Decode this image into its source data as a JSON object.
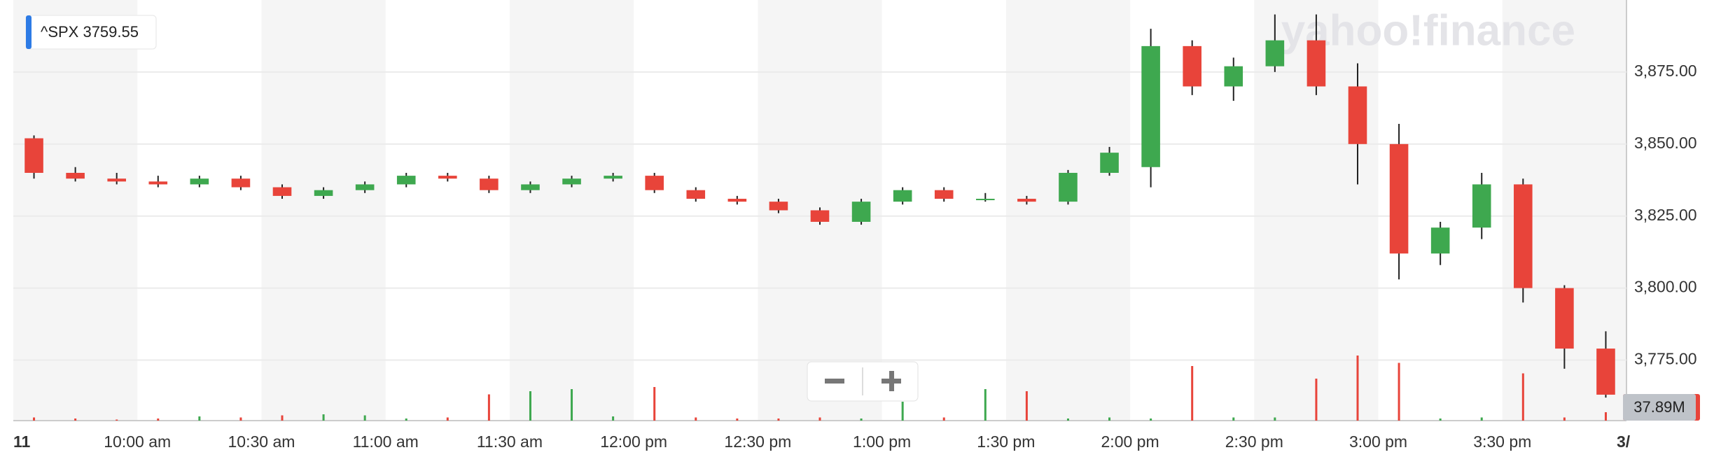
{
  "chart_data": {
    "type": "candlestick",
    "symbol_label": "^SPX 3759.55",
    "watermark": "yahoo!finance",
    "volume_label": "37.89M",
    "colors": {
      "up": "#3ea84f",
      "down": "#e8443a"
    },
    "x": [
      0,
      10,
      20,
      30,
      40,
      50,
      60,
      70,
      80,
      90,
      100,
      110,
      120,
      130,
      140,
      150,
      160,
      170,
      180,
      190,
      200,
      210,
      220,
      230,
      240,
      250,
      260,
      270,
      280,
      290,
      300,
      310,
      320,
      330,
      340,
      350,
      360,
      370,
      380
    ],
    "open": [
      3852,
      3840,
      3838,
      3837,
      3836,
      3838,
      3835,
      3832,
      3834,
      3836,
      3839,
      3838,
      3834,
      3836,
      3838,
      3839,
      3834,
      3831,
      3830,
      3827,
      3823,
      3830,
      3834,
      3831,
      3831,
      3830,
      3840,
      3842,
      3884,
      3870,
      3877,
      3886,
      3870,
      3850,
      3812,
      3821,
      3836,
      3800,
      3779
    ],
    "high": [
      3853,
      3842,
      3840,
      3839,
      3839,
      3839,
      3836,
      3835,
      3837,
      3840,
      3840,
      3839,
      3837,
      3839,
      3840,
      3840,
      3835,
      3832,
      3831,
      3828,
      3831,
      3835,
      3835,
      3833,
      3832,
      3841,
      3849,
      3890,
      3886,
      3880,
      3895,
      3895,
      3878,
      3857,
      3823,
      3840,
      3838,
      3801,
      3785
    ],
    "low": [
      3838,
      3837,
      3836,
      3835,
      3835,
      3834,
      3831,
      3831,
      3833,
      3835,
      3837,
      3833,
      3833,
      3835,
      3837,
      3833,
      3830,
      3829,
      3826,
      3822,
      3822,
      3829,
      3830,
      3830,
      3829,
      3829,
      3839,
      3835,
      3867,
      3865,
      3875,
      3867,
      3836,
      3803,
      3808,
      3817,
      3795,
      3772,
      3762
    ],
    "close": [
      3840,
      3838,
      3837,
      3836,
      3838,
      3835,
      3832,
      3834,
      3836,
      3839,
      3838,
      3834,
      3836,
      3838,
      3839,
      3834,
      3831,
      3830,
      3827,
      3823,
      3830,
      3834,
      3831,
      3831,
      3830,
      3840,
      3847,
      3884,
      3870,
      3877,
      3886,
      3870,
      3850,
      3812,
      3821,
      3836,
      3800,
      3779,
      3763
    ],
    "volume": [
      3,
      2,
      1,
      2,
      4,
      3,
      5,
      6,
      5,
      2,
      3,
      25,
      28,
      30,
      4,
      32,
      3,
      2,
      2,
      3,
      2,
      18,
      3,
      30,
      28,
      2,
      3,
      2,
      52,
      3,
      3,
      40,
      62,
      55,
      2,
      3,
      45,
      3,
      8
    ],
    "volume_lim": [
      0,
      100
    ],
    "xlim": [
      0,
      390
    ],
    "xticks": [
      {
        "value": 0,
        "label": "11"
      },
      {
        "value": 30,
        "label": "10:00 am"
      },
      {
        "value": 60,
        "label": "10:30 am"
      },
      {
        "value": 90,
        "label": "11:00 am"
      },
      {
        "value": 120,
        "label": "11:30 am"
      },
      {
        "value": 150,
        "label": "12:00 pm"
      },
      {
        "value": 180,
        "label": "12:30 pm"
      },
      {
        "value": 210,
        "label": "1:00 pm"
      },
      {
        "value": 240,
        "label": "1:30 pm"
      },
      {
        "value": 270,
        "label": "2:00 pm"
      },
      {
        "value": 300,
        "label": "2:30 pm"
      },
      {
        "value": 330,
        "label": "3:00 pm"
      },
      {
        "value": 360,
        "label": "3:30 pm"
      },
      {
        "value": 390,
        "label": "3/"
      }
    ],
    "ylim": [
      3754,
      3900
    ],
    "yticks": [
      {
        "value": 3775,
        "label": "3,775.00"
      },
      {
        "value": 3800,
        "label": "3,800.00"
      },
      {
        "value": 3825,
        "label": "3,825.00"
      },
      {
        "value": 3850,
        "label": "3,850.00"
      },
      {
        "value": 3875,
        "label": "3,875.00"
      }
    ],
    "grid": true
  }
}
